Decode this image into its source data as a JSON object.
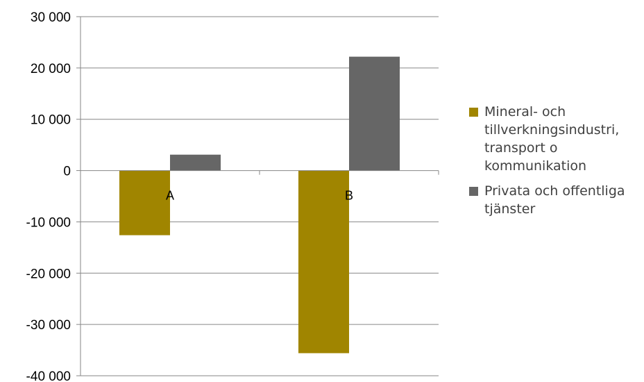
{
  "chart_data": {
    "type": "bar",
    "categories": [
      "A",
      "B"
    ],
    "series": [
      {
        "name": "Mineral- och tillverkningsindustri, transport o kommunikation",
        "color": "#a08500",
        "values": [
          -12600,
          -35600
        ]
      },
      {
        "name": "Privata och offentliga tjänster",
        "color": "#666666",
        "values": [
          3100,
          22200
        ]
      }
    ],
    "ylim": [
      -40000,
      30000
    ],
    "yticks": [
      30000,
      20000,
      10000,
      0,
      -10000,
      -20000,
      -30000,
      -40000
    ],
    "ytick_labels": [
      "30 000",
      "20 000",
      "10 000",
      "0",
      "-10 000",
      "-20 000",
      "-30 000",
      "-40 000"
    ],
    "grid": true,
    "legend_position": "right",
    "gridline_color": "#868686"
  }
}
